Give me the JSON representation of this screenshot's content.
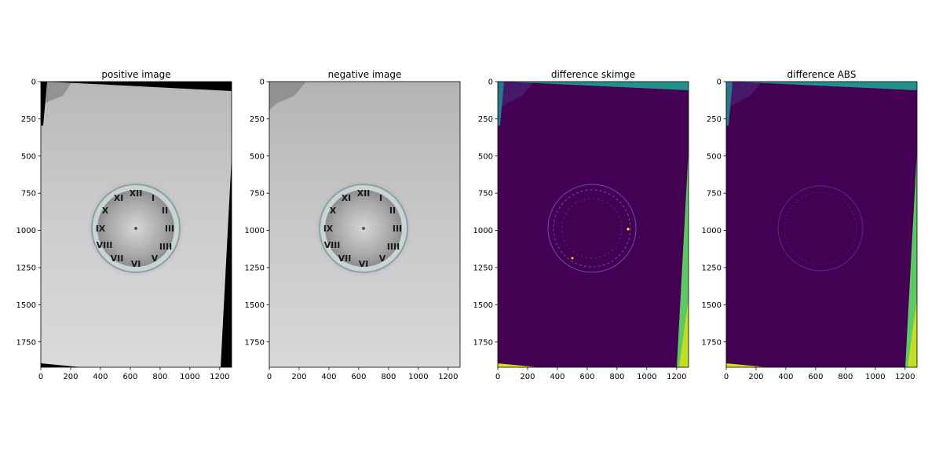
{
  "chart_data": [
    {
      "type": "image",
      "title": "positive image",
      "xticks": [
        "0",
        "200",
        "400",
        "600",
        "800",
        "1000",
        "1200"
      ],
      "yticks": [
        "0",
        "250",
        "500",
        "750",
        "1000",
        "1250",
        "1500",
        "1750"
      ],
      "xlim": [
        0,
        1280
      ],
      "ylim": [
        1920,
        0
      ],
      "colormap": "gray",
      "content": "gray photo of a Roman-numeral clock face on a light background, rotated with black corners"
    },
    {
      "type": "image",
      "title": "negative image",
      "xticks": [
        "0",
        "200",
        "400",
        "600",
        "800",
        "1000",
        "1200"
      ],
      "yticks": [
        "0",
        "250",
        "500",
        "750",
        "1000",
        "1250",
        "1500",
        "1750"
      ],
      "xlim": [
        0,
        1280
      ],
      "ylim": [
        1920,
        0
      ],
      "colormap": "gray",
      "content": "gray photo of a Roman-numeral clock face on a light background"
    },
    {
      "type": "image",
      "title": "difference skimge",
      "xticks": [
        "0",
        "200",
        "400",
        "600",
        "800",
        "1000",
        "1200"
      ],
      "yticks": [
        "0",
        "250",
        "500",
        "750",
        "1000",
        "1250",
        "1500",
        "1750"
      ],
      "xlim": [
        0,
        1280
      ],
      "ylim": [
        1920,
        0
      ],
      "colormap": "viridis",
      "content": "dark purple difference map with faint clock outline and teal/yellow corner wedges"
    },
    {
      "type": "image",
      "title": "difference ABS",
      "xticks": [
        "0",
        "200",
        "400",
        "600",
        "800",
        "1000",
        "1200"
      ],
      "yticks": [
        "0",
        "250",
        "500",
        "750",
        "1000",
        "1250",
        "1500",
        "1750"
      ],
      "xlim": [
        0,
        1280
      ],
      "ylim": [
        1920,
        0
      ],
      "colormap": "viridis",
      "content": "dark purple difference map with faint clock outline and teal/yellow corner wedges"
    }
  ],
  "colors": {
    "viridis_low": "#440154",
    "viridis_teal": "#21918c",
    "viridis_green": "#5ec962",
    "viridis_yellow": "#d5e21d",
    "photo_background": "#cfcfcf",
    "black": "#000000"
  }
}
